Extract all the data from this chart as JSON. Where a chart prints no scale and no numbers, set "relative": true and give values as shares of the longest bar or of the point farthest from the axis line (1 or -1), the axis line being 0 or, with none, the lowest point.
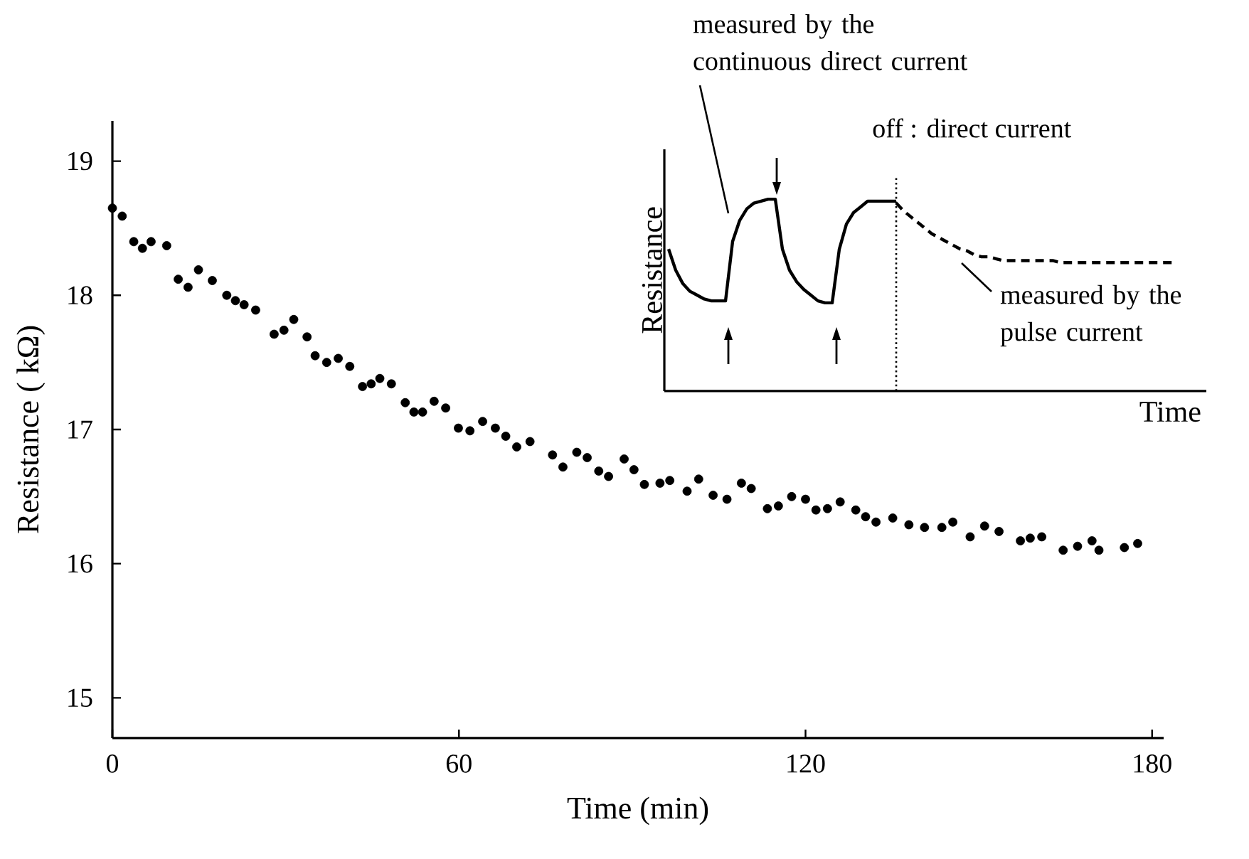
{
  "chart_data": [
    {
      "type": "scatter",
      "xlabel": "Time (min)",
      "ylabel": "Resistance ( kΩ)",
      "color": "#000000",
      "marker": "circle",
      "xlim": [
        0,
        182
      ],
      "ylim": [
        14.7,
        19.3
      ],
      "xticks": [
        0,
        60,
        120,
        180
      ],
      "yticks": [
        15,
        16,
        17,
        18,
        19
      ],
      "x": [
        0,
        1.7,
        3.7,
        5.2,
        6.7,
        9.4,
        11.4,
        13.1,
        14.9,
        17.3,
        19.8,
        21.3,
        22.8,
        24.8,
        28,
        29.7,
        31.4,
        33.7,
        35.1,
        37.1,
        39.1,
        41.1,
        43.3,
        44.8,
        46.3,
        48.3,
        50.7,
        52.2,
        53.7,
        55.7,
        57.7,
        59.9,
        61.9,
        64.1,
        66.3,
        68.1,
        70,
        72.3,
        76.2,
        78,
        80.4,
        82.2,
        84.2,
        85.9,
        88.6,
        90.3,
        92.1,
        94.8,
        96.5,
        99.5,
        101.5,
        104,
        106.4,
        108.9,
        110.6,
        113.4,
        115.3,
        117.6,
        120,
        121.8,
        123.8,
        126,
        128.7,
        130.4,
        132.2,
        135.1,
        137.9,
        140.6,
        143.6,
        145.5,
        148.5,
        151,
        153.5,
        157.2,
        158.9,
        160.9,
        164.6,
        167.1,
        169.6,
        170.8,
        175.2,
        177.5
      ],
      "values": [
        18.65,
        18.59,
        18.4,
        18.35,
        18.4,
        18.37,
        18.12,
        18.06,
        18.19,
        18.11,
        18.0,
        17.96,
        17.93,
        17.89,
        17.71,
        17.74,
        17.82,
        17.69,
        17.55,
        17.5,
        17.53,
        17.47,
        17.32,
        17.34,
        17.38,
        17.34,
        17.2,
        17.13,
        17.13,
        17.21,
        17.16,
        17.01,
        16.99,
        17.06,
        17.01,
        16.95,
        16.87,
        16.91,
        16.81,
        16.72,
        16.83,
        16.79,
        16.69,
        16.65,
        16.78,
        16.7,
        16.59,
        16.6,
        16.62,
        16.54,
        16.63,
        16.51,
        16.48,
        16.6,
        16.56,
        16.41,
        16.43,
        16.5,
        16.48,
        16.4,
        16.41,
        16.46,
        16.4,
        16.35,
        16.31,
        16.34,
        16.29,
        16.27,
        16.27,
        16.31,
        16.2,
        16.28,
        16.24,
        16.17,
        16.19,
        16.2,
        16.1,
        16.13,
        16.17,
        16.1,
        16.12,
        16.15
      ]
    },
    {
      "type": "line",
      "relative": true,
      "xlabel": "Time",
      "ylabel": "Resistance",
      "tick_labels": false,
      "categories": [
        null,
        null,
        null,
        null,
        null,
        null,
        null,
        null,
        null,
        null,
        null,
        null,
        null,
        null,
        null,
        null,
        null,
        null,
        null,
        null,
        null,
        null,
        null,
        null,
        null,
        null,
        null,
        null,
        null,
        null,
        null,
        null,
        null,
        null,
        null,
        null,
        null,
        null,
        null,
        null,
        null,
        null,
        null,
        null,
        null,
        null,
        null,
        null,
        null,
        null,
        null,
        null,
        null,
        null,
        null,
        null,
        null,
        null,
        null,
        null,
        null,
        null,
        null,
        null,
        null,
        null,
        null,
        null,
        null,
        null,
        null,
        null
      ],
      "series": [
        {
          "color": "#000000",
          "line_style": "solid",
          "values": [
            0.74,
            0.63,
            0.56,
            0.52,
            0.5,
            0.48,
            0.47,
            0.47,
            0.47,
            0.78,
            0.89,
            0.95,
            0.98,
            0.99,
            1,
            1,
            0.74,
            0.63,
            0.57,
            0.53,
            0.5,
            0.47,
            0.46,
            0.46,
            0.74,
            0.87,
            0.93,
            0.96,
            0.99,
            0.99,
            0.99,
            0.99,
            0.99,
            null,
            null,
            null,
            null,
            null,
            null,
            null,
            null,
            null,
            null,
            null,
            null,
            null,
            null,
            null,
            null,
            null,
            null,
            null,
            null,
            null,
            null,
            null,
            null,
            null,
            null,
            null,
            null,
            null,
            null,
            null,
            null,
            null,
            null,
            null,
            null,
            null,
            null,
            null
          ]
        },
        {
          "color": "#000000",
          "line_style": "dashed",
          "values": [
            null,
            null,
            null,
            null,
            null,
            null,
            null,
            null,
            null,
            null,
            null,
            null,
            null,
            null,
            null,
            null,
            null,
            null,
            null,
            null,
            null,
            null,
            null,
            null,
            null,
            null,
            null,
            null,
            null,
            null,
            null,
            null,
            0.98,
            0.94,
            0.91,
            0.88,
            0.85,
            0.82,
            0.8,
            0.78,
            0.76,
            0.74,
            0.73,
            0.71,
            0.7,
            0.7,
            0.69,
            0.68,
            0.68,
            0.68,
            0.68,
            0.68,
            0.68,
            0.68,
            0.68,
            0.67,
            0.67,
            0.67,
            0.67,
            0.67,
            0.67,
            0.67,
            0.67,
            0.67,
            0.67,
            0.67,
            0.67,
            0.67,
            0.67,
            0.67,
            0.67,
            0.67
          ]
        }
      ],
      "annotations": [
        "measured by the continuous direct current",
        "off : direct current",
        "measured by the pulse current"
      ]
    }
  ]
}
